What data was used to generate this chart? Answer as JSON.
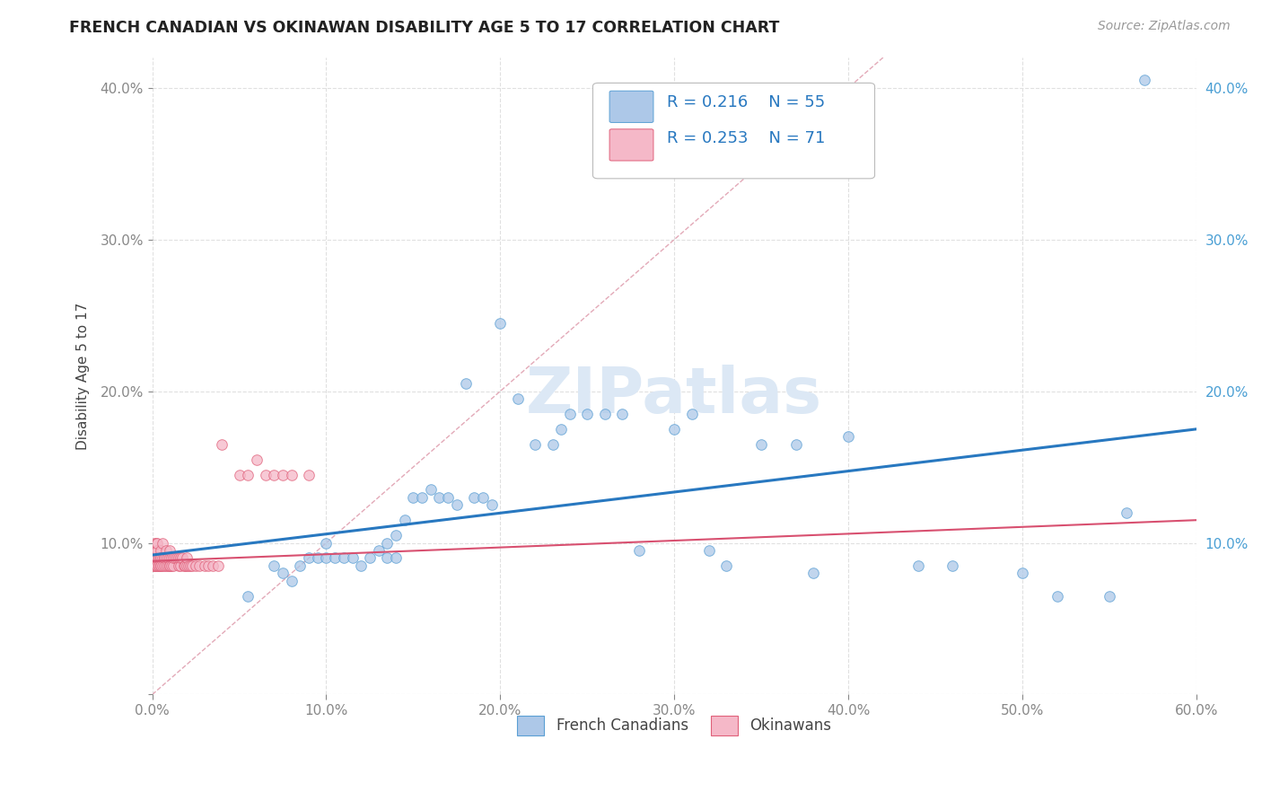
{
  "title": "FRENCH CANADIAN VS OKINAWAN DISABILITY AGE 5 TO 17 CORRELATION CHART",
  "source": "Source: ZipAtlas.com",
  "ylabel": "Disability Age 5 to 17",
  "xlabel": "",
  "xlim": [
    0.0,
    0.6
  ],
  "ylim": [
    0.0,
    0.42
  ],
  "xticks": [
    0.0,
    0.1,
    0.2,
    0.3,
    0.4,
    0.5,
    0.6
  ],
  "yticks": [
    0.0,
    0.1,
    0.2,
    0.3,
    0.4
  ],
  "legend_r_blue": "R = 0.216",
  "legend_n_blue": "N = 55",
  "legend_r_pink": "R = 0.253",
  "legend_n_pink": "N = 71",
  "blue_scatter_x": [
    0.055,
    0.07,
    0.075,
    0.08,
    0.085,
    0.09,
    0.095,
    0.1,
    0.1,
    0.105,
    0.11,
    0.115,
    0.12,
    0.125,
    0.13,
    0.135,
    0.135,
    0.14,
    0.14,
    0.145,
    0.15,
    0.155,
    0.16,
    0.165,
    0.17,
    0.175,
    0.18,
    0.185,
    0.19,
    0.195,
    0.2,
    0.21,
    0.22,
    0.23,
    0.235,
    0.24,
    0.25,
    0.26,
    0.27,
    0.28,
    0.3,
    0.31,
    0.32,
    0.33,
    0.35,
    0.37,
    0.38,
    0.4,
    0.44,
    0.46,
    0.5,
    0.52,
    0.55,
    0.56,
    0.57
  ],
  "blue_scatter_y": [
    0.065,
    0.085,
    0.08,
    0.075,
    0.085,
    0.09,
    0.09,
    0.09,
    0.1,
    0.09,
    0.09,
    0.09,
    0.085,
    0.09,
    0.095,
    0.09,
    0.1,
    0.09,
    0.105,
    0.115,
    0.13,
    0.13,
    0.135,
    0.13,
    0.13,
    0.125,
    0.205,
    0.13,
    0.13,
    0.125,
    0.245,
    0.195,
    0.165,
    0.165,
    0.175,
    0.185,
    0.185,
    0.185,
    0.185,
    0.095,
    0.175,
    0.185,
    0.095,
    0.085,
    0.165,
    0.165,
    0.08,
    0.17,
    0.085,
    0.085,
    0.08,
    0.065,
    0.065,
    0.12,
    0.405
  ],
  "pink_scatter_x": [
    0.0,
    0.0,
    0.001,
    0.001,
    0.001,
    0.001,
    0.002,
    0.002,
    0.002,
    0.002,
    0.003,
    0.003,
    0.003,
    0.003,
    0.004,
    0.004,
    0.004,
    0.004,
    0.005,
    0.005,
    0.005,
    0.005,
    0.005,
    0.006,
    0.006,
    0.006,
    0.007,
    0.007,
    0.007,
    0.008,
    0.008,
    0.008,
    0.009,
    0.009,
    0.01,
    0.01,
    0.01,
    0.01,
    0.011,
    0.011,
    0.012,
    0.012,
    0.013,
    0.014,
    0.015,
    0.015,
    0.016,
    0.016,
    0.017,
    0.018,
    0.019,
    0.02,
    0.02,
    0.021,
    0.022,
    0.023,
    0.025,
    0.027,
    0.03,
    0.032,
    0.035,
    0.038,
    0.04,
    0.05,
    0.055,
    0.06,
    0.065,
    0.07,
    0.075,
    0.08,
    0.09
  ],
  "pink_scatter_y": [
    0.095,
    0.085,
    0.1,
    0.09,
    0.085,
    0.085,
    0.095,
    0.1,
    0.09,
    0.085,
    0.085,
    0.09,
    0.095,
    0.1,
    0.09,
    0.085,
    0.09,
    0.085,
    0.085,
    0.09,
    0.095,
    0.09,
    0.085,
    0.09,
    0.1,
    0.085,
    0.09,
    0.085,
    0.09,
    0.09,
    0.085,
    0.095,
    0.085,
    0.09,
    0.085,
    0.09,
    0.095,
    0.085,
    0.09,
    0.085,
    0.085,
    0.09,
    0.09,
    0.09,
    0.085,
    0.09,
    0.085,
    0.09,
    0.09,
    0.085,
    0.085,
    0.085,
    0.09,
    0.085,
    0.085,
    0.085,
    0.085,
    0.085,
    0.085,
    0.085,
    0.085,
    0.085,
    0.165,
    0.145,
    0.145,
    0.155,
    0.145,
    0.145,
    0.145,
    0.145,
    0.145
  ],
  "blue_line_x": [
    0.0,
    0.6
  ],
  "blue_line_y": [
    0.092,
    0.175
  ],
  "pink_line_x": [
    0.0,
    0.6
  ],
  "pink_line_y": [
    0.088,
    0.115
  ],
  "blue_scatter_color": "#adc8e8",
  "pink_scatter_color": "#f5b8c8",
  "blue_scatter_edge": "#5a9fd4",
  "pink_scatter_edge": "#e0607a",
  "blue_line_color": "#2878c0",
  "pink_line_color": "#d85070",
  "diagonal_line_color": "#e0a0b0",
  "watermark_color": "#dce8f5",
  "watermark_text": "ZIPatlas",
  "background_color": "#ffffff",
  "grid_color": "#e0e0e0",
  "title_color": "#222222",
  "axis_label_color": "#444444",
  "tick_label_color": "#888888",
  "right_tick_color": "#4a9fd4",
  "legend_label_blue": "French Canadians",
  "legend_label_pink": "Okinawans"
}
